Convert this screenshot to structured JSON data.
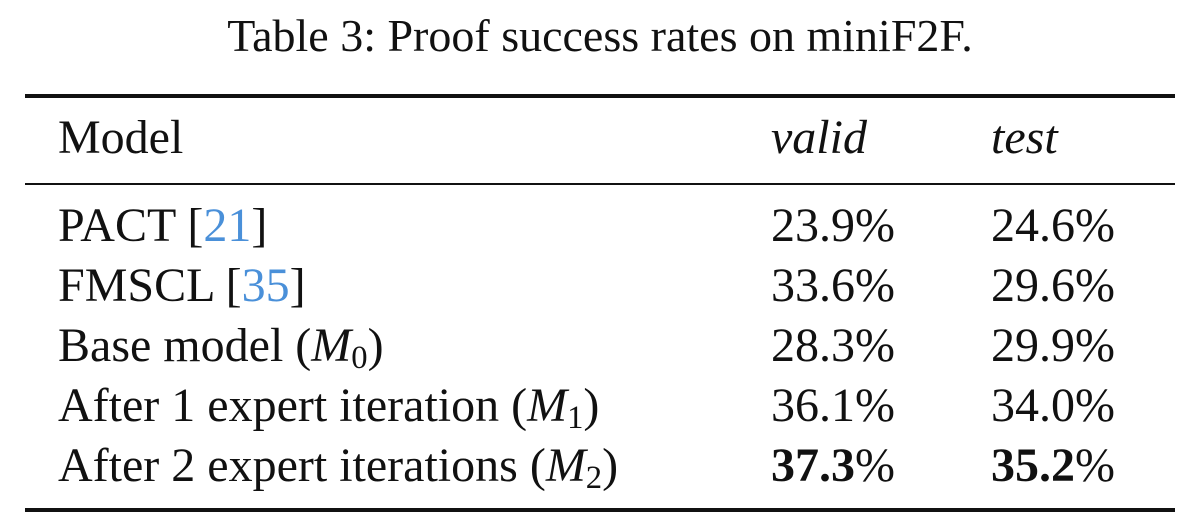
{
  "caption": "Table 3: Proof success rates on miniF2F.",
  "header": {
    "model": "Model",
    "valid": "valid",
    "test": "test"
  },
  "rows": [
    {
      "model": "PACT [",
      "cite": "21",
      "model_suffix": "]",
      "valid": "23.9%",
      "test": "24.6%"
    },
    {
      "model": "FMSCL [",
      "cite": "35",
      "model_suffix": "]",
      "valid": "33.6%",
      "test": "29.6%"
    },
    {
      "model": "Base model (",
      "math": "M",
      "sub": "0",
      "model_suffix": ")",
      "valid": "28.3%",
      "test": "29.9%"
    },
    {
      "model": "After 1 expert iteration (",
      "math": "M",
      "sub": "1",
      "model_suffix": ")",
      "valid": "36.1%",
      "test": "34.0%"
    },
    {
      "model": "After 2 expert iterations (",
      "math": "M",
      "sub": "2",
      "model_suffix": ")",
      "valid_num": "37.3",
      "valid_pct": "%",
      "test_num": "35.2",
      "test_pct": "%"
    }
  ]
}
